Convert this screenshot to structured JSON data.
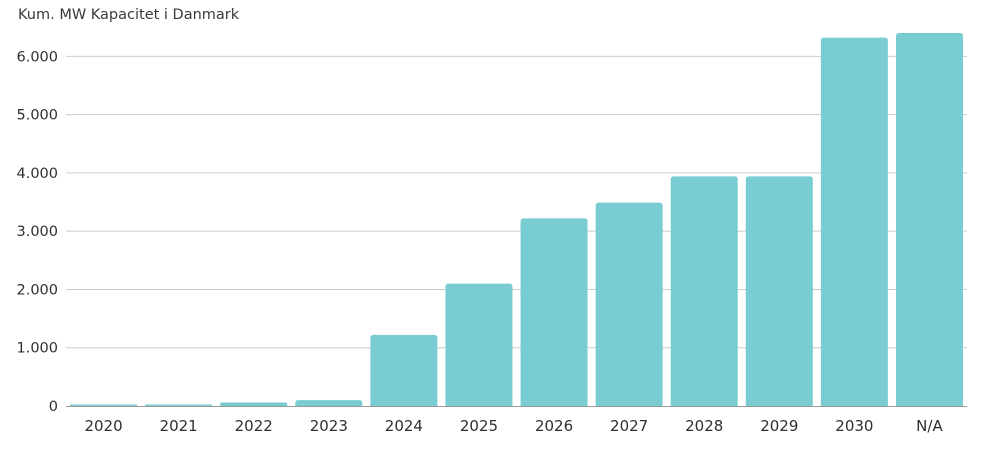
{
  "chart_data": {
    "type": "bar",
    "subtitle": "Kum. MW Kapacitet i Danmark",
    "categories": [
      "2020",
      "2021",
      "2022",
      "2023",
      "2024",
      "2025",
      "2026",
      "2027",
      "2028",
      "2029",
      "2030",
      "N/A"
    ],
    "values": [
      10,
      10,
      60,
      100,
      1220,
      2100,
      3220,
      3490,
      3940,
      3940,
      6320,
      6400
    ],
    "ylim": [
      0,
      6400
    ],
    "y_ticks": [
      0,
      1000,
      2000,
      3000,
      4000,
      5000,
      6000
    ],
    "y_tick_labels": [
      "0",
      "1.000",
      "2.000",
      "3.000",
      "4.000",
      "5.000",
      "6.000"
    ],
    "grid": true,
    "legend": "none",
    "colors": {
      "bar": "#79ccd1",
      "grid": "#cccccc",
      "baseline": "#9a9a9a"
    }
  }
}
